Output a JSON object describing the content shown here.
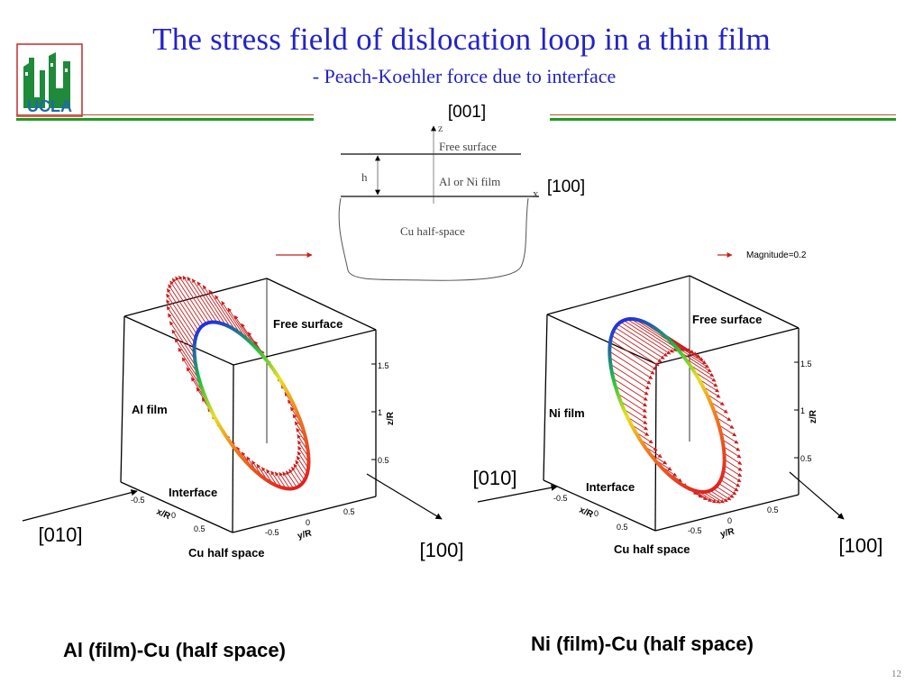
{
  "slide": {
    "title": "The stress field of dislocation loop in a thin film",
    "subtitle": "- Peach-Koehler force due to interface",
    "page_number": "12",
    "logo_text": "UCLA"
  },
  "schematic": {
    "axis_z_direction": "[001]",
    "axis_z_label": "z",
    "axis_x_direction": "[100]",
    "axis_x_label": "x",
    "free_surface_label": "Free surface",
    "film_label": "Al or Ni film",
    "thickness_label": "h",
    "substrate_label": "Cu half-space"
  },
  "legend": {
    "magnitude_label": "Magnitude=0.2"
  },
  "left_plot": {
    "free_surface_label": "Free surface",
    "film_label": "Al film",
    "interface_label": "Interface",
    "substrate_label": "Cu half space",
    "x_axis_label": "x/R",
    "y_axis_label": "y/R",
    "z_axis_label": "z/R",
    "x_ticks": [
      "-0.5",
      "0",
      "0.5"
    ],
    "y_ticks": [
      "-0.5",
      "0",
      "0.5"
    ],
    "z_ticks": [
      "0.5",
      "1",
      "1.5"
    ],
    "direction_010": "[010]",
    "direction_100": "[100]",
    "caption": "Al (film)-Cu (half space)"
  },
  "right_plot": {
    "free_surface_label": "Free surface",
    "film_label": "Ni film",
    "interface_label": "Interface",
    "substrate_label": "Cu half space",
    "x_axis_label": "x/R",
    "y_axis_label": "y/R",
    "z_axis_label": "z/R",
    "x_ticks": [
      "-0.5",
      "0",
      "0.5"
    ],
    "y_ticks": [
      "-0.5",
      "0",
      "0.5"
    ],
    "z_ticks": [
      "0.5",
      "1",
      "1.5"
    ],
    "direction_010": "[010]",
    "direction_100": "[100]",
    "caption": "Ni (film)-Cu (half space)"
  },
  "colors": {
    "title": "#2323c8",
    "divider": "#219a21",
    "force_arrow": "#c81e1e"
  }
}
